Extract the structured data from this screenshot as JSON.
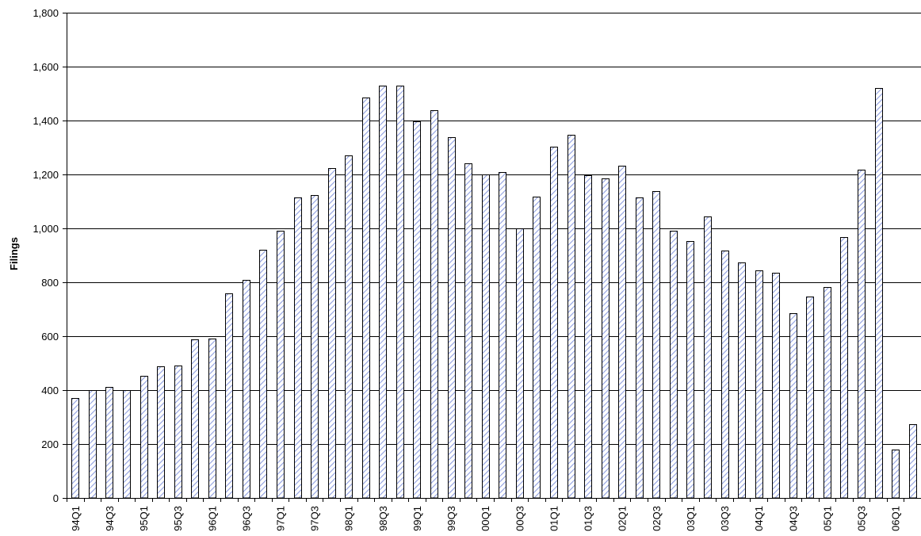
{
  "chart_data": {
    "type": "bar",
    "ylabel": "Filings",
    "xlabel": "",
    "title": "",
    "ylim": [
      0,
      1800
    ],
    "yticks": [
      0,
      200,
      400,
      600,
      800,
      1000,
      1200,
      1400,
      1600,
      1800
    ],
    "ytick_labels": [
      "0",
      "200",
      "400",
      "600",
      "800",
      "1,000",
      "1,200",
      "1,400",
      "1,600",
      "1,800"
    ],
    "grid": "horizontal",
    "legend": "none",
    "bar_fill": "hatched blue-white diagonal",
    "colors": {
      "hatch": "#8f9fe0",
      "bar_outline": "#000000",
      "grid": "#000000"
    },
    "categories": [
      "1994Q1",
      "1994Q2",
      "1994Q3",
      "1994Q4",
      "1995Q1",
      "1995Q2",
      "1995Q3",
      "1995Q4",
      "1996Q1",
      "1996Q2",
      "1996Q3",
      "1996Q4",
      "1997Q1",
      "1997Q2",
      "1997Q3",
      "1997Q4",
      "1998Q1",
      "1998Q2",
      "1998Q3",
      "1998Q4",
      "1999Q1",
      "1999Q2",
      "1999Q3",
      "1999Q4",
      "2000Q1",
      "2000Q2",
      "2000Q3",
      "2000Q4",
      "2001Q1",
      "2001Q2",
      "2001Q3",
      "2001Q4",
      "2002Q1",
      "2002Q2",
      "2002Q3",
      "2002Q4",
      "2003Q1",
      "2003Q2",
      "2003Q3",
      "2003Q4",
      "2004Q1",
      "2004Q2",
      "2004Q3",
      "2004Q4",
      "2005Q1",
      "2005Q2",
      "2005Q3",
      "2005Q4",
      "2006Q1",
      "2006Q2"
    ],
    "tick_labels": [
      "94Q1",
      "94Q3",
      "95Q1",
      "95Q3",
      "96Q1",
      "96Q3",
      "97Q1",
      "97Q3",
      "98Q1",
      "98Q3",
      "99Q1",
      "99Q3",
      "00Q1",
      "00Q3",
      "01Q1",
      "01Q3",
      "02Q1",
      "02Q3",
      "03Q1",
      "03Q3",
      "04Q1",
      "04Q3",
      "05Q1",
      "05Q3",
      "06Q1"
    ],
    "values": [
      372,
      400,
      413,
      400,
      453,
      488,
      492,
      588,
      592,
      760,
      810,
      920,
      990,
      1115,
      1123,
      1225,
      1270,
      1485,
      1528,
      1530,
      1397,
      1437,
      1338,
      1240,
      1200,
      1210,
      1000,
      1118,
      1304,
      1348,
      1198,
      1186,
      1233,
      1116,
      1138,
      992,
      952,
      1045,
      918,
      874,
      843,
      835,
      684,
      748,
      782,
      968,
      1217,
      1522,
      180,
      274
    ]
  }
}
